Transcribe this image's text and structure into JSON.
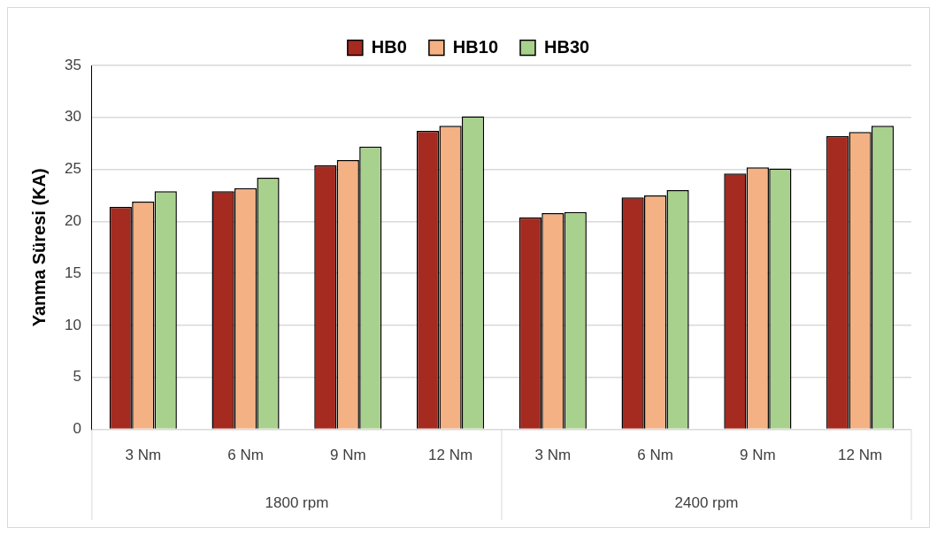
{
  "chart_data": {
    "type": "bar",
    "ylabel": "Yanma Süresi (KA)",
    "categories": [
      "3 Nm",
      "6 Nm",
      "9 Nm",
      "12 Nm",
      "3 Nm",
      "6 Nm",
      "9 Nm",
      "12 Nm"
    ],
    "series": [
      {
        "name": "HB0",
        "color": "#a52a1f",
        "values": [
          21.4,
          22.9,
          25.4,
          28.7,
          20.4,
          22.3,
          24.6,
          28.2
        ]
      },
      {
        "name": "HB10",
        "color": "#f4b183",
        "values": [
          21.9,
          23.2,
          25.9,
          29.2,
          20.8,
          22.5,
          25.2,
          28.6
        ]
      },
      {
        "name": "HB30",
        "color": "#a9d18e",
        "values": [
          22.9,
          24.2,
          27.2,
          30.1,
          20.9,
          23.0,
          25.1,
          29.2
        ]
      }
    ],
    "annotations": [
      "1800 rpm",
      "2400 rpm"
    ],
    "ylim": [
      0,
      35
    ],
    "yticks": [
      0,
      5,
      10,
      15,
      20,
      25,
      30,
      35
    ],
    "grid": "y",
    "legend": "top"
  }
}
